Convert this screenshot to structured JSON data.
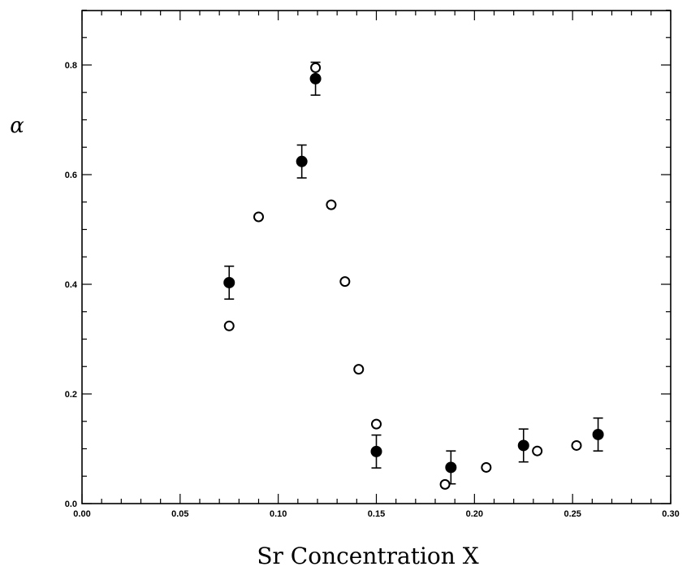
{
  "chart_data": {
    "type": "scatter",
    "title": "",
    "xlabel": "Sr Concentration  X",
    "ylabel": "α",
    "xlim": [
      0.0,
      0.3
    ],
    "ylim": [
      0.0,
      0.8
    ],
    "x_ticks": [
      "0.00",
      "0.05",
      "0.10",
      "0.15",
      "0.20",
      "0.25",
      "0.30"
    ],
    "y_ticks": [
      "0.0",
      "0.2",
      "0.4",
      "0.6",
      "0.8"
    ],
    "grid": false,
    "legend": "none",
    "series": [
      {
        "marker": "filled-circle",
        "color": "#000000",
        "x": [
          0.075,
          0.112,
          0.119,
          0.15,
          0.188,
          0.225,
          0.263
        ],
        "y": [
          0.403,
          0.624,
          0.775,
          0.095,
          0.066,
          0.106,
          0.126
        ],
        "error": [
          0.03,
          0.03,
          0.03,
          0.03,
          0.03,
          0.03,
          0.03
        ]
      },
      {
        "marker": "open-circle",
        "color": "#000000",
        "x": [
          0.075,
          0.09,
          0.119,
          0.127,
          0.134,
          0.141,
          0.15,
          0.185,
          0.206,
          0.232,
          0.252
        ],
        "y": [
          0.324,
          0.523,
          0.795,
          0.545,
          0.405,
          0.245,
          0.145,
          0.035,
          0.066,
          0.096,
          0.106
        ]
      }
    ]
  }
}
